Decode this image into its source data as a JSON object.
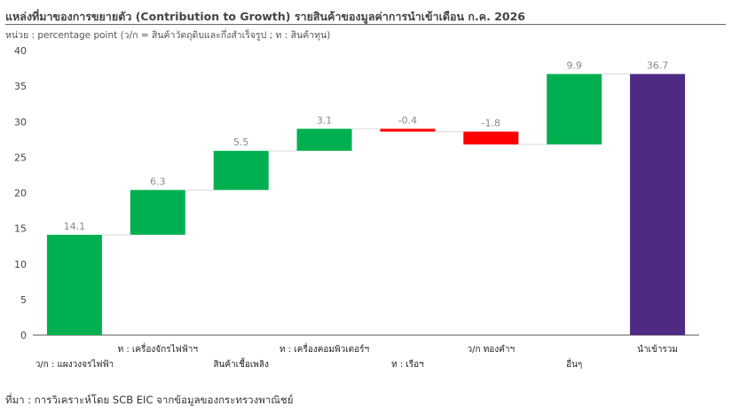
{
  "title": "แหล่งที่มาของการขยายตัว (Contribution to Growth) รายสินค้าของมูลค่าการนำเข้าเดือน ก.ค. 2026",
  "subtitle": "หน่วย : percentage point (ว/ก = สินค้าวัตถุดิบและกึ่งสำเร็จรูป ; ท : สินค้าทุน)",
  "source": "ที่มา : การวิเคราะห์โดย SCB EIC จากข้อมูลของกระทรวงพาณิชย์",
  "colors": {
    "positive": "#00b050",
    "negative": "#ff0000",
    "total": "#4e2a84"
  },
  "chart_data": {
    "type": "bar",
    "subtype": "waterfall",
    "ylim": [
      0,
      40
    ],
    "yticks": [
      0,
      5,
      10,
      15,
      20,
      25,
      30,
      35,
      40
    ],
    "grid": false,
    "categories": [
      "ว/ก : แผงวงจรไฟฟ้า",
      "ท : เครื่องจักรไฟฟ้าฯ",
      "สินค้าเชื้อเพลิง",
      "ท : เครื่องคอมพิวเตอร์ฯ",
      "ท : เรือฯ",
      "ว/ก ทองคำฯ",
      "อื่นๆ",
      "นำเข้ารวม"
    ],
    "values": [
      14.1,
      6.3,
      5.5,
      3.1,
      -0.4,
      -1.8,
      9.9,
      36.7
    ],
    "labels": [
      "14.1",
      "6.3",
      "5.5",
      "3.1",
      "-0.4",
      "-1.8",
      "9.9",
      "36.7"
    ],
    "kinds": [
      "delta",
      "delta",
      "delta",
      "delta",
      "delta",
      "delta",
      "delta",
      "total"
    ]
  }
}
